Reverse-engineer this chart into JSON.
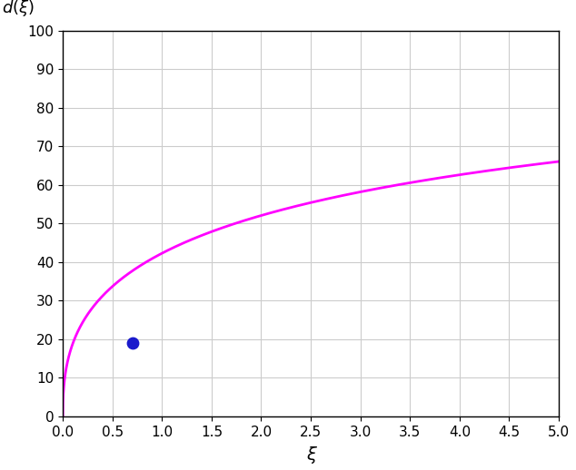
{
  "xlim": [
    0,
    5
  ],
  "ylim": [
    0,
    100
  ],
  "xticks": [
    0,
    0.5,
    1,
    1.5,
    2,
    2.5,
    3,
    3.5,
    4,
    4.5,
    5
  ],
  "yticks": [
    0,
    10,
    20,
    30,
    40,
    50,
    60,
    70,
    80,
    90,
    100
  ],
  "xlabel": "ξ",
  "ylabel_text": "$\\hat{d}(\\xi)$",
  "curve_color": "#FF00FF",
  "curve_linewidth": 2.0,
  "dot_x": 0.7,
  "dot_y": 19.0,
  "dot_color": "#1a1aCC",
  "dot_size": 80,
  "func_A": 100.0,
  "func_k": 0.55,
  "func_m": 0.42,
  "background_color": "#FFFFFF",
  "grid_color": "#CCCCCC",
  "grid_linewidth": 0.8,
  "tick_fontsize": 11,
  "xlabel_fontsize": 14,
  "ylabel_fontsize": 13,
  "figsize": [
    6.34,
    5.18
  ],
  "dpi": 100
}
